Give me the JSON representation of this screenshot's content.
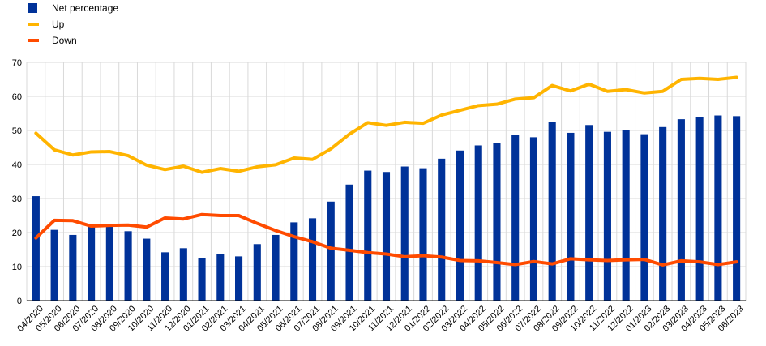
{
  "colors": {
    "net": "#003299",
    "up": "#FFB400",
    "down": "#FF4B00",
    "grid": "#d9d9d9",
    "axis": "#000000"
  },
  "legend": [
    {
      "label": "Net percentage",
      "type": "box",
      "color": "#003299"
    },
    {
      "label": "Up",
      "type": "line",
      "color": "#FFB400"
    },
    {
      "label": "Down",
      "type": "line",
      "color": "#FF4B00"
    }
  ],
  "chart_data": {
    "type": "bar",
    "title": "",
    "xlabel": "",
    "ylabel": "",
    "ylim": [
      0,
      70
    ],
    "yticks": [
      0,
      10,
      20,
      30,
      40,
      50,
      60,
      70
    ],
    "grid": true,
    "legend_position": "top-left",
    "categories": [
      "04/2020",
      "05/2020",
      "06/2020",
      "07/2020",
      "08/2020",
      "09/2020",
      "10/2020",
      "11/2020",
      "12/2020",
      "01/2021",
      "02/2021",
      "03/2021",
      "04/2021",
      "05/2021",
      "06/2021",
      "07/2021",
      "08/2021",
      "09/2021",
      "10/2021",
      "11/2021",
      "12/2021",
      "01/2022",
      "02/2022",
      "03/2022",
      "04/2022",
      "05/2022",
      "06/2022",
      "07/2022",
      "08/2022",
      "09/2022",
      "10/2022",
      "11/2022",
      "12/2022",
      "01/2023",
      "02/2023",
      "03/2023",
      "04/2023",
      "05/2023",
      "06/2023"
    ],
    "series": [
      {
        "name": "Net percentage",
        "kind": "bar",
        "color": "#003299",
        "values": [
          30.7,
          20.8,
          19.3,
          21.8,
          21.8,
          20.4,
          18.2,
          14.2,
          15.4,
          12.4,
          13.8,
          13.0,
          16.6,
          19.3,
          23.0,
          24.2,
          29.1,
          34.1,
          38.2,
          37.8,
          39.4,
          38.9,
          41.7,
          44.1,
          45.6,
          46.4,
          48.6,
          48.0,
          52.4,
          49.3,
          51.6,
          49.6,
          50.0,
          48.9,
          51.0,
          53.3,
          53.9,
          54.4,
          54.2
        ]
      },
      {
        "name": "Up",
        "kind": "line",
        "color": "#FFB400",
        "values": [
          49.2,
          44.3,
          42.8,
          43.7,
          43.8,
          42.6,
          39.8,
          38.5,
          39.5,
          37.7,
          38.8,
          38.0,
          39.3,
          39.9,
          41.9,
          41.5,
          44.6,
          48.9,
          52.3,
          51.5,
          52.4,
          52.1,
          54.5,
          55.9,
          57.3,
          57.7,
          59.2,
          59.6,
          63.2,
          61.6,
          63.6,
          61.5,
          62.0,
          61.0,
          61.5,
          65.0,
          65.3,
          65.0,
          65.6
        ]
      },
      {
        "name": "Down",
        "kind": "line",
        "color": "#FF4B00",
        "values": [
          18.4,
          23.6,
          23.5,
          21.9,
          22.1,
          22.2,
          21.6,
          24.3,
          24.0,
          25.3,
          25.0,
          25.0,
          22.7,
          20.6,
          18.8,
          17.3,
          15.4,
          14.8,
          14.1,
          13.7,
          12.9,
          13.2,
          12.8,
          11.8,
          11.7,
          11.2,
          10.6,
          11.5,
          10.8,
          12.3,
          12.0,
          11.8,
          12.0,
          12.1,
          10.5,
          11.7,
          11.4,
          10.6,
          11.4
        ]
      }
    ]
  }
}
